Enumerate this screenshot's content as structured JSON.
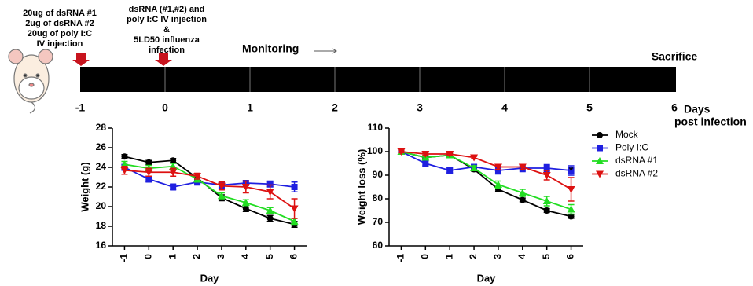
{
  "timeline": {
    "first_dose": [
      "20ug of dsRNA #1",
      "2ug of dsRNA #2",
      "20ug of poly I:C",
      "IV injection"
    ],
    "second_dose": [
      "dsRNA (#1,#2) and",
      "poly I:C IV injection",
      "&",
      "5LD50 influenza",
      "infection"
    ],
    "monitoring": "Monitoring",
    "end": "Sacrifice",
    "days": [
      -1,
      0,
      1,
      2,
      3,
      4,
      5,
      6
    ],
    "axis_label": [
      "Days",
      "post infection"
    ]
  },
  "chart_data": [
    {
      "type": "line",
      "y_label": "Weight (g)",
      "x_label": "Day",
      "categories": [
        "-1",
        "0",
        "1",
        "2",
        "3",
        "4",
        "5",
        "6"
      ],
      "ylim": [
        16,
        28
      ],
      "yticks": [
        16,
        18,
        20,
        22,
        24,
        26,
        28
      ],
      "series": [
        {
          "color": "#000000",
          "marker": "circle",
          "values": [
            25.1,
            24.5,
            24.7,
            22.9,
            20.9,
            19.8,
            18.8,
            18.2
          ],
          "errors": [
            0.2,
            0.2,
            0.2,
            0.2,
            0.3,
            0.3,
            0.3,
            0.3
          ]
        },
        {
          "color": "#1f1fe0",
          "marker": "square",
          "values": [
            24.0,
            22.8,
            22.0,
            22.5,
            22.2,
            22.4,
            22.3,
            22.0
          ],
          "errors": [
            0.3,
            0.3,
            0.3,
            0.3,
            0.3,
            0.2,
            0.3,
            0.5
          ]
        },
        {
          "color": "#22dd22",
          "marker": "triangle-up",
          "values": [
            24.3,
            23.9,
            24.1,
            22.8,
            21.1,
            20.4,
            19.6,
            18.5
          ],
          "errors": [
            0.3,
            0.3,
            0.3,
            0.3,
            0.3,
            0.3,
            0.3,
            0.3
          ]
        },
        {
          "color": "#dd1111",
          "marker": "triangle-down",
          "values": [
            23.7,
            23.5,
            23.5,
            23.1,
            22.1,
            22.0,
            21.5,
            19.8
          ],
          "errors": [
            0.4,
            0.4,
            0.4,
            0.3,
            0.4,
            0.6,
            0.7,
            1.0
          ]
        }
      ]
    },
    {
      "type": "line",
      "y_label": "Weight loss (%)",
      "x_label": "Day",
      "categories": [
        "-1",
        "0",
        "1",
        "2",
        "3",
        "4",
        "5",
        "6"
      ],
      "ylim": [
        60,
        110
      ],
      "yticks": [
        60,
        70,
        80,
        90,
        100,
        110
      ],
      "legend": "right",
      "annotation": "*",
      "series": [
        {
          "name": "Mock",
          "color": "#000000",
          "marker": "circle",
          "values": [
            100,
            97.5,
            98.5,
            92.5,
            84,
            79.5,
            75,
            72.5
          ],
          "errors": [
            0.5,
            0.5,
            0.5,
            0.8,
            0.8,
            0.8,
            0.8,
            0.8
          ]
        },
        {
          "name": "Poly I:C",
          "color": "#1f1fe0",
          "marker": "square",
          "values": [
            100,
            95,
            92,
            93.5,
            92,
            93,
            93,
            92
          ],
          "errors": [
            1,
            1,
            1,
            1,
            1.5,
            1.5,
            1.5,
            2
          ]
        },
        {
          "name": "dsRNA #1",
          "color": "#22dd22",
          "marker": "triangle-up",
          "values": [
            100,
            97.5,
            98.5,
            93,
            86,
            82.5,
            79,
            75.5
          ],
          "errors": [
            1,
            1,
            1,
            1,
            1.5,
            1.5,
            2,
            2
          ]
        },
        {
          "name": "dsRNA #2",
          "color": "#dd1111",
          "marker": "triangle-down",
          "values": [
            100,
            99,
            99,
            97.5,
            93.5,
            93.5,
            90,
            84
          ],
          "errors": [
            0.5,
            0.5,
            0.5,
            0.5,
            1,
            1,
            2,
            5
          ]
        }
      ]
    }
  ]
}
